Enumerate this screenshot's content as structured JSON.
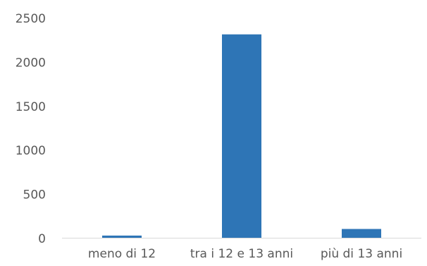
{
  "chart_data": {
    "type": "bar",
    "categories": [
      "meno di 12",
      "tra i 12 e 13 anni",
      "più di 13 anni"
    ],
    "values": [
      25,
      2310,
      100
    ],
    "ylim": [
      0,
      2500
    ],
    "yticks": [
      0,
      500,
      1000,
      1500,
      2000,
      2500
    ],
    "grid": false,
    "legend": "none",
    "colors": {
      "bar": "#2E75B6",
      "axis": "#D9D9D9",
      "text": "#595959"
    }
  }
}
